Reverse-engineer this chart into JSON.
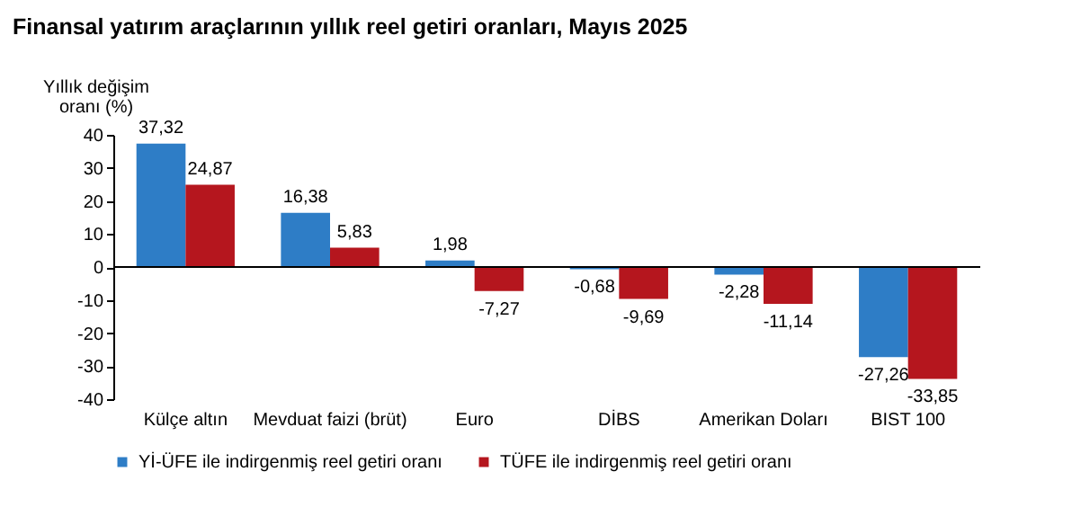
{
  "chart_data": {
    "type": "bar",
    "title": "Finansal yatırım araçlarının yıllık reel getiri oranları, Mayıs 2025",
    "ylabel": "Yıllık değişim oranı (%)",
    "categories": [
      "Külçe altın",
      "Mevduat faizi (brüt)",
      "Euro",
      "DİBS",
      "Amerikan Doları",
      "BIST 100"
    ],
    "series": [
      {
        "name": "Yİ-ÜFE ile indirgenmiş reel getiri oranı",
        "color": "#2e7dc6",
        "values": [
          37.32,
          16.38,
          1.98,
          -0.68,
          -2.28,
          -27.26
        ],
        "value_labels": [
          "37,32",
          "16,38",
          "1,98",
          "-0,68",
          "-2,28",
          "-27,26"
        ]
      },
      {
        "name": "TÜFE ile indirgenmiş reel getiri oranı",
        "color": "#b5161e",
        "values": [
          24.87,
          5.83,
          -7.27,
          -9.69,
          -11.14,
          -33.85
        ],
        "value_labels": [
          "24,87",
          "5,83",
          "-7,27",
          "-9,69",
          "-11,14",
          "-33,85"
        ]
      }
    ],
    "ylim": [
      -40,
      40
    ],
    "yticks": [
      -40,
      -30,
      -20,
      -10,
      0,
      10,
      20,
      30,
      40
    ],
    "ref_lines": [
      {
        "axis": "y",
        "value": 0,
        "color": "#000000"
      }
    ],
    "legend": "bottom"
  }
}
